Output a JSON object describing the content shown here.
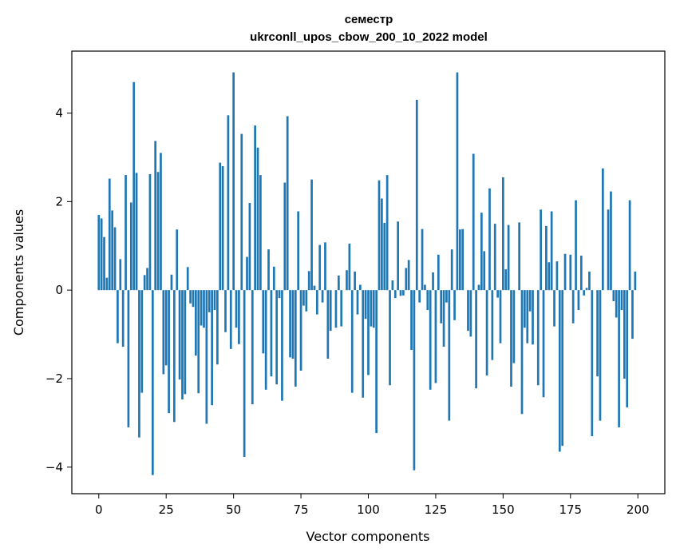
{
  "chart_data": {
    "type": "bar",
    "title_line1": "семестр",
    "title_line2": "ukrconll_upos_cbow_200_10_2022 model",
    "xlabel": "Vector components",
    "ylabel": "Components values",
    "xlim": [
      -10,
      210
    ],
    "ylim": [
      -4.6,
      5.4
    ],
    "xticks": [
      0,
      25,
      50,
      75,
      100,
      125,
      150,
      175,
      200
    ],
    "yticks": [
      -4,
      -2,
      0,
      2,
      4
    ],
    "ytick_labels": [
      "−4",
      "−2",
      "0",
      "2",
      "4"
    ],
    "bar_color": "#1f77b4",
    "values": [
      1.7,
      1.62,
      1.2,
      0.28,
      2.52,
      1.8,
      1.42,
      -1.2,
      0.7,
      -1.28,
      2.6,
      -3.1,
      1.98,
      4.7,
      2.65,
      -3.33,
      -2.32,
      0.34,
      0.5,
      2.62,
      -4.18,
      3.37,
      2.67,
      3.1,
      -1.9,
      -1.7,
      -2.78,
      0.35,
      -2.98,
      1.37,
      -2.02,
      -2.47,
      -2.35,
      0.52,
      -0.3,
      -0.38,
      -1.48,
      -2.33,
      -0.8,
      -0.85,
      -3.02,
      -0.5,
      -2.6,
      -0.45,
      -1.68,
      2.88,
      2.8,
      -0.95,
      3.95,
      -1.33,
      4.92,
      -0.85,
      -1.22,
      3.53,
      -3.77,
      0.75,
      1.97,
      -2.58,
      3.72,
      3.22,
      2.6,
      -1.43,
      -2.25,
      0.92,
      -1.95,
      0.53,
      -2.13,
      -0.18,
      -2.5,
      2.43,
      3.93,
      -1.52,
      -1.55,
      -2.18,
      1.78,
      -1.82,
      -0.35,
      -0.48,
      0.43,
      2.5,
      0.1,
      -0.55,
      1.02,
      -0.28,
      1.08,
      -1.55,
      -0.92,
      0.0,
      -0.85,
      0.33,
      -0.82,
      0.0,
      0.45,
      1.05,
      -2.32,
      0.42,
      -0.55,
      0.12,
      -2.43,
      -0.65,
      -1.92,
      -0.82,
      -0.85,
      -3.23,
      2.48,
      2.07,
      1.52,
      2.6,
      -2.15,
      0.22,
      -0.18,
      1.55,
      -0.13,
      -0.12,
      0.5,
      0.68,
      -1.35,
      -4.07,
      4.3,
      -0.28,
      1.38,
      0.12,
      -0.45,
      -2.25,
      0.4,
      -2.1,
      0.8,
      -0.75,
      -1.28,
      -0.28,
      -2.95,
      0.92,
      -0.68,
      4.92,
      1.37,
      1.38,
      0.0,
      -0.92,
      -1.05,
      3.08,
      -2.22,
      0.12,
      1.75,
      0.88,
      -1.93,
      2.3,
      -1.58,
      1.5,
      -0.17,
      -1.2,
      2.55,
      0.47,
      1.47,
      -2.18,
      -1.65,
      0.0,
      1.53,
      -2.8,
      -0.85,
      -1.2,
      -0.48,
      -1.23,
      0.0,
      -2.15,
      1.82,
      -2.42,
      1.45,
      0.63,
      1.78,
      -0.82,
      0.65,
      -3.65,
      -3.52,
      0.82,
      0.0,
      0.8,
      -0.75,
      2.03,
      -0.45,
      0.78,
      -0.12,
      0.05,
      0.42,
      -3.3,
      0.0,
      -1.95,
      -2.95,
      2.75,
      0.0,
      1.82,
      2.23,
      -0.25,
      -0.62,
      -3.1,
      -0.45,
      -2.0,
      -2.65,
      2.03,
      -1.1,
      0.42
    ]
  }
}
